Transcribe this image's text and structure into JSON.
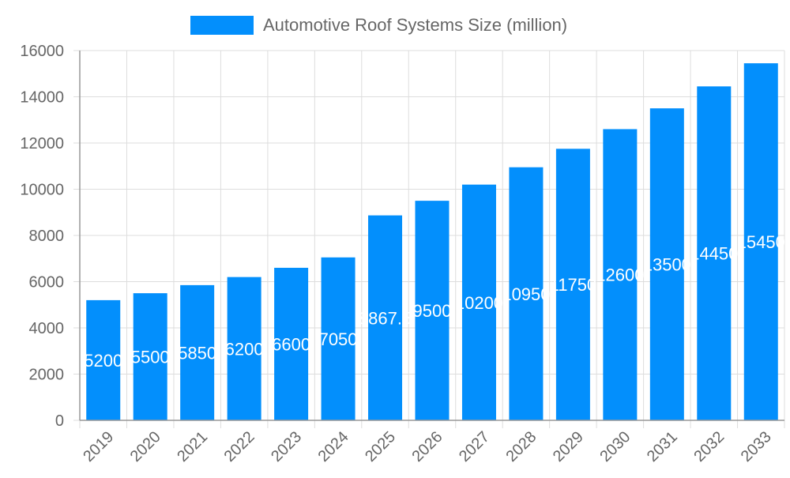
{
  "chart_data": {
    "type": "bar",
    "title": "",
    "xlabel": "",
    "ylabel": "",
    "legend": {
      "position": "top",
      "entries": [
        "Automotive Roof Systems Size (million)"
      ]
    },
    "categories": [
      "2019",
      "2020",
      "2021",
      "2022",
      "2023",
      "2024",
      "2025",
      "2026",
      "2027",
      "2028",
      "2029",
      "2030",
      "2031",
      "2032",
      "2033"
    ],
    "series": [
      {
        "name": "Automotive Roof Systems Size (million)",
        "values": [
          5200,
          5500,
          5850,
          6200,
          6600,
          7050,
          8867.5,
          9500,
          10200,
          10950,
          11750,
          12600,
          13500,
          14450,
          15450
        ]
      }
    ],
    "ylim": [
      0,
      16000
    ],
    "yticks": [
      "0",
      "2000",
      "4000",
      "6000",
      "8000",
      "10000",
      "12000",
      "14000",
      "16000"
    ],
    "grid": true,
    "colors": {
      "bar": "#038ffc",
      "grid": "#dddddd",
      "axis": "#999999",
      "text": "#666666",
      "label": "#ffffff"
    }
  }
}
